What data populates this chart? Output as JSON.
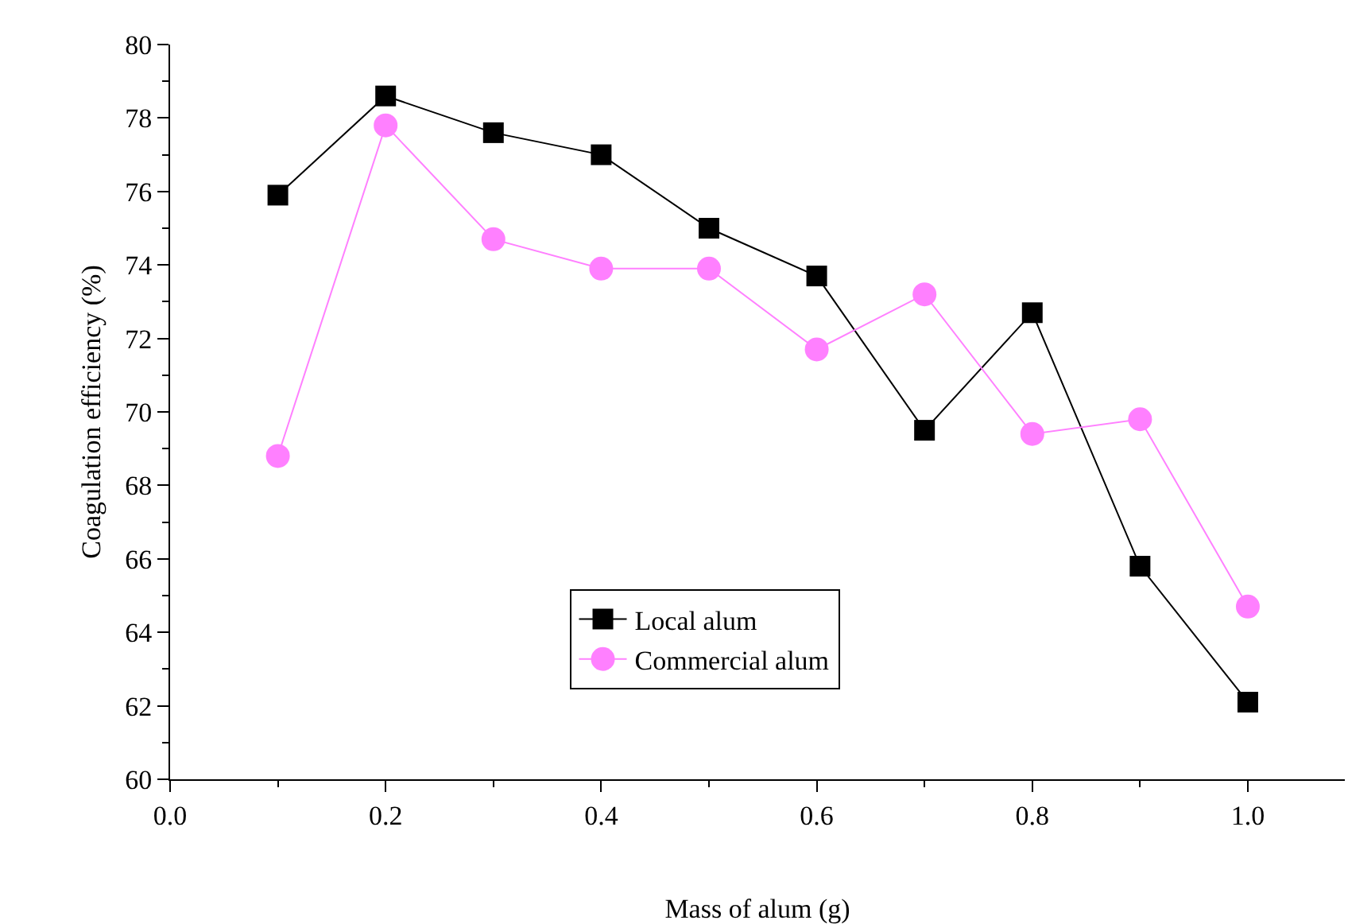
{
  "chart_data": {
    "type": "line",
    "xlabel": "Mass of alum (g)",
    "ylabel": "Coagulation efficiency (%)",
    "x": [
      0.1,
      0.2,
      0.3,
      0.4,
      0.5,
      0.6,
      0.7,
      0.8,
      0.9,
      1.0
    ],
    "series": [
      {
        "name": "Local alum",
        "color": "#000000",
        "marker": "square",
        "values": [
          75.9,
          78.6,
          77.6,
          77.0,
          75.0,
          73.7,
          69.5,
          72.7,
          65.8,
          62.1
        ]
      },
      {
        "name": "Commercial alum",
        "color": "#ff80ff",
        "marker": "circle",
        "values": [
          68.8,
          77.8,
          74.7,
          73.9,
          73.9,
          71.7,
          73.2,
          69.4,
          69.8,
          64.7
        ]
      }
    ],
    "xlim": [
      0,
      1.09
    ],
    "xticks": [
      {
        "value": 0,
        "label": "0.0"
      },
      0.2,
      0.4,
      0.6,
      0.8,
      {
        "value": 1,
        "label": "1.0"
      }
    ],
    "ylim": [
      60,
      80
    ],
    "yticks": [
      60,
      62,
      64,
      66,
      68,
      70,
      72,
      74,
      76,
      78,
      80
    ],
    "grid": false,
    "legend": "bottom",
    "line_style": "solid"
  }
}
